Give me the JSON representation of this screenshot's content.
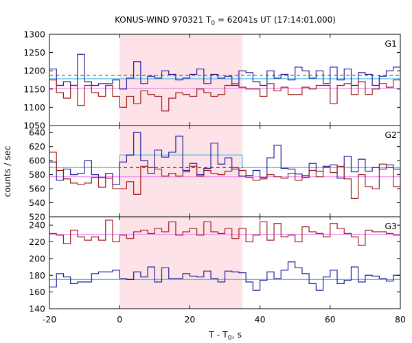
{
  "chart_data": {
    "type": "line",
    "title": "KONUS-WIND 970321 T0 = 62041s UT (17:14:01.000)",
    "title_parts": {
      "prefix": "KONUS-WIND 970321 T",
      "sub": "0",
      "suffix": " = 62041s UT (17:14:01.000)"
    },
    "xlabel_parts": {
      "prefix": "T - T",
      "sub": "0",
      "suffix": ", s"
    },
    "ylabel": "counts / sec",
    "xlim": [
      -20,
      80
    ],
    "x_ticks": [
      -20,
      0,
      20,
      40,
      60,
      80
    ],
    "x_tick_labels": [
      "-20",
      "0",
      "20",
      "40",
      "60",
      "80"
    ],
    "shaded_interval": {
      "x": [
        0,
        35
      ],
      "color": "#fde3e7"
    },
    "grid": false,
    "colors": {
      "blue_series": "#1f1f9e",
      "red_series": "#a01c1c",
      "blue_fit": "#55c1e8",
      "red_fit": "#ee82ee"
    },
    "bin_edges": [
      -20,
      -18,
      -16,
      -14,
      -12,
      -10,
      -8,
      -6,
      -4,
      -2,
      0,
      2,
      4,
      6,
      8,
      10,
      12,
      14,
      16,
      18,
      20,
      22,
      24,
      26,
      28,
      30,
      32,
      34,
      36,
      38,
      40,
      42,
      44,
      46,
      48,
      50,
      52,
      54,
      56,
      58,
      60,
      62,
      64,
      66,
      68,
      70,
      72,
      74,
      76,
      78,
      80
    ],
    "panels": [
      {
        "label": "G1",
        "ylim": [
          1050,
          1300
        ],
        "y_ticks": [
          1050,
          1100,
          1150,
          1200,
          1250,
          1300
        ],
        "y_tick_labels": [
          "1050",
          "1100",
          "1150",
          "1200",
          "1250",
          "1300"
        ],
        "series": [
          {
            "color_key": "blue_series",
            "values": [
              1205,
              1160,
              1170,
              1160,
              1245,
              1170,
              1160,
              1165,
              1165,
              1175,
              1150,
              1180,
              1225,
              1165,
              1185,
              1180,
              1200,
              1190,
              1175,
              1180,
              1190,
              1205,
              1165,
              1190,
              1180,
              1185,
              1160,
              1200,
              1195,
              1170,
              1160,
              1200,
              1180,
              1190,
              1175,
              1210,
              1200,
              1180,
              1200,
              1165,
              1210,
              1175,
              1205,
              1160,
              1195,
              1190,
              1160,
              1185,
              1200,
              1210
            ]
          },
          {
            "color_key": "red_series",
            "values": [
              1175,
              1140,
              1125,
              1160,
              1105,
              1160,
              1140,
              1130,
              1160,
              1130,
              1100,
              1130,
              1110,
              1145,
              1135,
              1130,
              1090,
              1125,
              1140,
              1135,
              1130,
              1150,
              1140,
              1130,
              1135,
              1160,
              1165,
              1155,
              1150,
              1150,
              1130,
              1165,
              1145,
              1155,
              1135,
              1135,
              1155,
              1150,
              1160,
              1160,
              1110,
              1160,
              1165,
              1135,
              1170,
              1135,
              1150,
              1165,
              1155,
              1175
            ]
          }
        ],
        "fits": [
          {
            "color_key": "red_series",
            "style": "dashed",
            "segments": [
              {
                "x": [
                  -20,
                  80
                ],
                "y": 1188
              }
            ]
          },
          {
            "color_key": "blue_fit",
            "style": "solid",
            "segments": [
              {
                "x": [
                  -20,
                  80
                ],
                "y": 1178
              }
            ]
          },
          {
            "color_key": "red_fit",
            "style": "solid",
            "segments": [
              {
                "x": [
                  -20,
                  80
                ],
                "y": 1152
              }
            ]
          }
        ]
      },
      {
        "label": "G2",
        "ylim": [
          520,
          650
        ],
        "y_ticks": [
          520,
          540,
          560,
          580,
          600,
          620,
          640
        ],
        "y_tick_labels": [
          "520",
          "540",
          "560",
          "580",
          "600",
          "620",
          "640"
        ],
        "series": [
          {
            "color_key": "blue_series",
            "values": [
              598,
              572,
              588,
              580,
              582,
              600,
              580,
              576,
              582,
              566,
              598,
              608,
              640,
              600,
              582,
              615,
              605,
              612,
              635,
              586,
              596,
              580,
              589,
              625,
              595,
              604,
              588,
              578,
              579,
              586,
              576,
              604,
              622,
              589,
              588,
              581,
              576,
              596,
              585,
              592,
              594,
              575,
              606,
              584,
              602,
              585,
              590,
              588,
              594,
              588
            ]
          },
          {
            "color_key": "red_series",
            "values": [
              612,
              586,
              574,
              568,
              566,
              568,
              576,
              562,
              575,
              560,
              560,
              570,
              552,
              592,
              590,
              588,
              578,
              582,
              578,
              584,
              592,
              578,
              586,
              582,
              580,
              585,
              590,
              586,
              576,
              572,
              574,
              580,
              577,
              575,
              582,
              572,
              579,
              586,
              577,
              590,
              583,
              592,
              574,
              546,
              580,
              563,
              560,
              595,
              590,
              563
            ]
          }
        ],
        "fits": [
          {
            "color_key": "red_series",
            "style": "dashed",
            "segments": [
              {
                "x": [
                  -20,
                  80
                ],
                "y": 590
              }
            ]
          },
          {
            "color_key": "blue_fit",
            "style": "solid",
            "segments": [
              {
                "x": [
                  -20,
                  0
                ],
                "y": 590
              },
              {
                "x": [
                  0,
                  35
                ],
                "y": 608
              },
              {
                "x": [
                  35,
                  80
                ],
                "y": 590
              }
            ]
          },
          {
            "color_key": "red_fit",
            "style": "solid",
            "segments": [
              {
                "x": [
                  -20,
                  80
                ],
                "y": 577
              }
            ]
          }
        ]
      },
      {
        "label": "G3",
        "ylim": [
          140,
          250
        ],
        "y_ticks": [
          140,
          160,
          180,
          200,
          220,
          240
        ],
        "y_tick_labels": [
          "140",
          "160",
          "180",
          "200",
          "220",
          "240"
        ],
        "series": [
          {
            "color_key": "blue_series",
            "values": [
              166,
              182,
              178,
              170,
              172,
              172,
              182,
              184,
              184,
              186,
              176,
              175,
              184,
              178,
              190,
              172,
              189,
              176,
              176,
              182,
              179,
              178,
              185,
              176,
              172,
              185,
              184,
              183,
              172,
              162,
              174,
              184,
              176,
              186,
              196,
              189,
              182,
              170,
              162,
              178,
              186,
              170,
              174,
              190,
              172,
              180,
              179,
              176,
              173,
              180
            ]
          },
          {
            "color_key": "red_series",
            "values": [
              230,
              228,
              218,
              234,
              226,
              222,
              226,
              222,
              246,
              220,
              228,
              224,
              232,
              234,
              230,
              236,
              232,
              244,
              228,
              232,
              236,
              228,
              244,
              232,
              230,
              236,
              224,
              236,
              220,
              228,
              244,
              222,
              242,
              226,
              228,
              220,
              238,
              232,
              230,
              226,
              242,
              236,
              230,
              226,
              216,
              234,
              232,
              232,
              230,
              228
            ]
          }
        ],
        "fits": [
          {
            "color_key": "red_fit",
            "style": "solid",
            "segments": [
              {
                "x": [
                  -20,
                  80
                ],
                "y": 229
              }
            ]
          },
          {
            "color_key": "blue_fit",
            "style": "solid",
            "segments": [
              {
                "x": [
                  -20,
                  80
                ],
                "y": 175
              }
            ]
          }
        ]
      }
    ]
  }
}
